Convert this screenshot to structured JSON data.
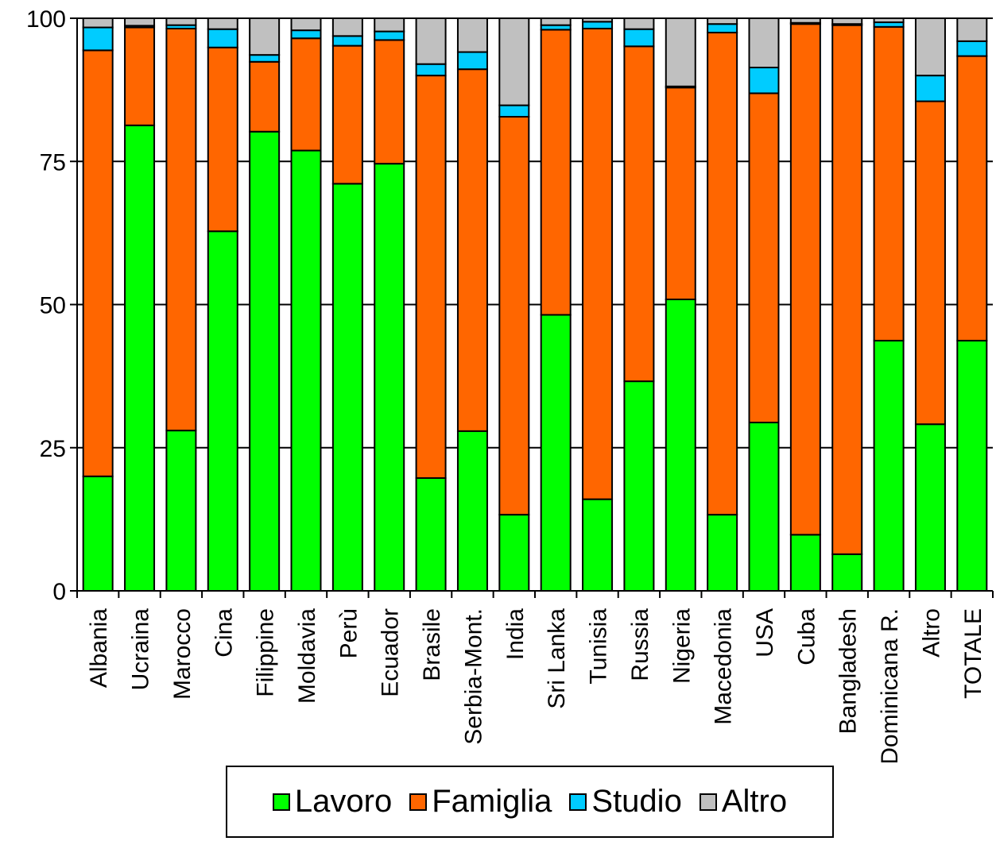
{
  "chart_data": {
    "type": "bar",
    "stacked": true,
    "categories": [
      "Albania",
      "Ucraina",
      "Marocco",
      "Cina",
      "Filippine",
      "Moldavia",
      "Perù",
      "Ecuador",
      "Brasile",
      "Serbia-Mont.",
      "India",
      "Sri Lanka",
      "Tunisia",
      "Russia",
      "Nigeria",
      "Macedonia",
      "USA",
      "Cuba",
      "Bangladesh",
      "Dominicana R.",
      "Altro",
      "TOTALE"
    ],
    "series": [
      {
        "name": "Lavoro",
        "color": "#00ff00",
        "values": [
          20,
          81.3,
          28,
          62.8,
          80.2,
          76.9,
          71.1,
          74.6,
          19.7,
          27.9,
          13.3,
          48.2,
          16,
          36.6,
          50.9,
          13.3,
          29.4,
          9.8,
          6.4,
          43.7,
          29.1,
          43.7
        ]
      },
      {
        "name": "Famiglia",
        "color": "#ff6600",
        "values": [
          74.4,
          17.1,
          70.2,
          32.1,
          12.2,
          19.6,
          24.1,
          21.6,
          70.3,
          63.2,
          69.5,
          49.8,
          82.2,
          58.5,
          37,
          84.2,
          57.5,
          89.2,
          92.4,
          54.8,
          56.4,
          49.7
        ]
      },
      {
        "name": "Studio",
        "color": "#00ccff",
        "values": [
          4,
          0.3,
          0.6,
          3.2,
          1.2,
          1.4,
          1.7,
          1.5,
          2,
          3,
          2,
          0.8,
          1.2,
          3,
          0.2,
          1.5,
          4.5,
          0.2,
          0.2,
          0.8,
          4.5,
          2.6
        ]
      },
      {
        "name": "Altro",
        "color": "#c0c0c0",
        "values": [
          1.6,
          1.3,
          1.2,
          1.9,
          6.4,
          2.1,
          3.1,
          2.3,
          8,
          5.9,
          15.2,
          1.2,
          0.6,
          1.9,
          11.9,
          1,
          8.6,
          0.8,
          1,
          0.7,
          10,
          4
        ]
      }
    ],
    "ylim": [
      0,
      100
    ],
    "yticks": [
      0,
      25,
      50,
      75,
      100
    ],
    "grid": true,
    "legend_position": "bottom"
  }
}
